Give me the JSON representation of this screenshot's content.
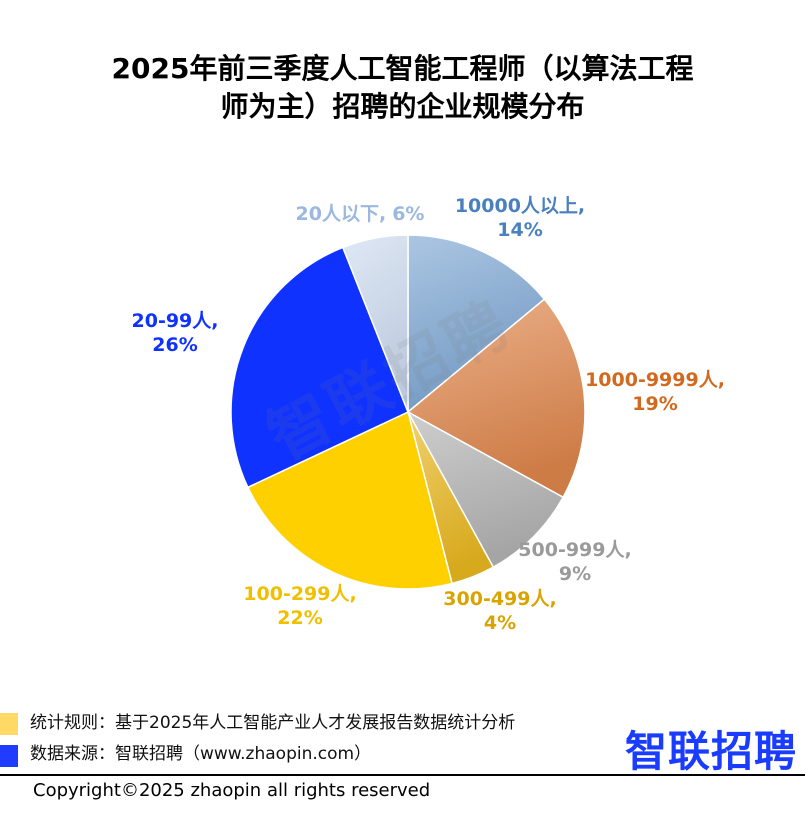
{
  "chart_data": {
    "type": "pie",
    "title": "2025年前三季度人工智能工程师（以算法工程师为主）招聘的企业规模分布",
    "title_lines": [
      "2025年前三季度人工智能工程师（以算法工程",
      "师为主）招聘的企业规模分布"
    ],
    "start": "12 o'clock, clockwise",
    "slices": [
      {
        "label": "10000人以上",
        "value": 14,
        "color": "#7ea7d4",
        "label_color": "#4a80bf"
      },
      {
        "label": "1000-9999人",
        "value": 19,
        "color": "#e0874c",
        "label_color": "#d2691e"
      },
      {
        "label": "500-999人",
        "value": 9,
        "color": "#b3b3b3",
        "label_color": "#9a9a9a"
      },
      {
        "label": "300-499人",
        "value": 4,
        "color": "#eab820",
        "label_color": "#d9a400"
      },
      {
        "label": "100-299人",
        "value": 22,
        "color": "#ffd000",
        "label_color": "#f0bf00"
      },
      {
        "label": "20-99人",
        "value": 26,
        "color": "#1032ff",
        "label_color": "#1032ff"
      },
      {
        "label": "20人以下",
        "value": 6,
        "color": "#cddcf0",
        "label_color": "#9bb8e0"
      }
    ]
  },
  "watermark": "智联招聘",
  "notes": {
    "rule": "统计规则：基于2025年人工智能产业人才发展报告数据统计分析",
    "source": "数据来源：智联招聘（www.zhaopin.com）",
    "rule_marker_color": "#ffd966",
    "source_marker_color": "#1f3cff"
  },
  "logo": "智联招聘",
  "copyright": "Copyright©2025 zhaopin all rights reserved"
}
